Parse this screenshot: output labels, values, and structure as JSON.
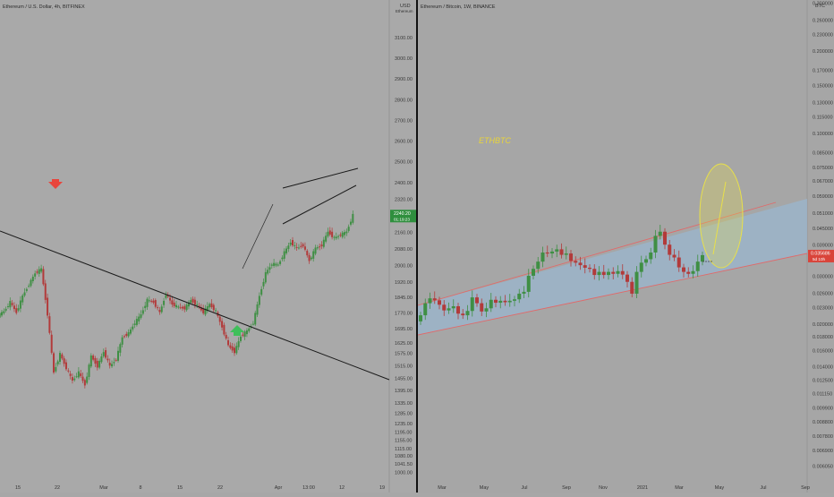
{
  "colors": {
    "background": "#a9a9a9",
    "up_candle": "#3f8f44",
    "down_candle": "#b23a3a",
    "channel_fill": "#9bb4c9",
    "channel_line": "#e06a6a",
    "ellipse": "#e8e04a",
    "price_tag_green": "#2f8f3e",
    "price_tag_red": "#d9443a",
    "arrow_down": "#e8453c",
    "arrow_up": "#3fbf5a"
  },
  "left_panel": {
    "title": "Ethereum / U.S. Dollar, 4h, BITFINEX",
    "axis_unit": "USD",
    "axis_unit_sub": "Ethereum",
    "price_tag": {
      "value": "2240.20",
      "time": "01:19:23"
    },
    "annotations": [
      {
        "kind": "arrow-down",
        "color": "red"
      },
      {
        "kind": "arrow-up",
        "color": "green"
      }
    ]
  },
  "right_panel": {
    "title": "Ethereum / Bitcoin, 1W, BINANCE",
    "axis_unit": "BTC",
    "label": "ETHBTC",
    "price_tag": {
      "value": "0.035686",
      "time": "5d 10h"
    }
  },
  "chart_data": [
    {
      "type": "line",
      "title": "Ethereum / U.S. Dollar, 4h, BITFINEX",
      "y_scale": "linear",
      "ylim": [
        1000,
        3180
      ],
      "x_tick_labels": [
        "15",
        "22",
        "Mar",
        "8",
        "15",
        "22",
        "Apr",
        "13:00",
        "12",
        "19"
      ],
      "y_tick_labels": [
        "3100.00",
        "3000.00",
        "2900.00",
        "2800.00",
        "2700.00",
        "2600.00",
        "2500.00",
        "2400.00",
        "2320.00",
        "2240.20",
        "2160.00",
        "2080.00",
        "2000.00",
        "1920.00",
        "1845.00",
        "1770.00",
        "1695.00",
        "1625.00",
        "1575.00",
        "1515.00",
        "1455.00",
        "1395.00",
        "1335.00",
        "1285.00",
        "1235.00",
        "1195.00",
        "1155.00",
        "1115.00",
        "1080.00",
        "1041.50",
        "1000.00"
      ],
      "series": [
        {
          "x": [
            "15",
            "16",
            "17",
            "18",
            "19",
            "20",
            "21",
            "22",
            "23",
            "24",
            "25",
            "26",
            "27",
            "28",
            "Mar",
            "2",
            "3",
            "4",
            "5",
            "6",
            "7",
            "8",
            "9",
            "10",
            "11",
            "12",
            "13",
            "14",
            "15",
            "16",
            "17",
            "18",
            "19",
            "20",
            "21",
            "22",
            "23",
            "24",
            "25",
            "26",
            "27",
            "28",
            "29",
            "30",
            "31",
            "Apr",
            "2",
            "3",
            "4",
            "5",
            "6",
            "7",
            "8",
            "9",
            "10",
            "11",
            "12"
          ],
          "values": [
            1775,
            1820,
            1770,
            1850,
            1905,
            1960,
            1980,
            1760,
            1480,
            1570,
            1500,
            1440,
            1480,
            1420,
            1560,
            1510,
            1580,
            1510,
            1545,
            1650,
            1670,
            1720,
            1760,
            1830,
            1820,
            1770,
            1860,
            1810,
            1795,
            1790,
            1830,
            1805,
            1770,
            1810,
            1775,
            1700,
            1610,
            1580,
            1655,
            1680,
            1720,
            1850,
            1960,
            2005,
            2000,
            2060,
            2110,
            2080,
            2095,
            2020,
            2080,
            2095,
            2160,
            2130,
            2145,
            2160,
            2240
          ]
        }
      ],
      "annotations": [
        "descending trendline",
        "rising wedge",
        "short upward line"
      ]
    },
    {
      "type": "line",
      "title": "Ethereum / Bitcoin, 1W, BINANCE",
      "y_scale": "log",
      "ylim": [
        0.006,
        0.32
      ],
      "x_tick_labels": [
        "Mar",
        "May",
        "Jul",
        "Sep",
        "Nov",
        "2021",
        "Mar",
        "May",
        "Jul",
        "Sep"
      ],
      "y_tick_labels": [
        "0.300000",
        "0.260000",
        "0.230000",
        "0.200000",
        "0.170000",
        "0.150000",
        "0.130000",
        "0.115000",
        "0.100000",
        "0.085000",
        "0.075000",
        "0.067000",
        "0.059000",
        "0.051000",
        "0.045000",
        "0.039000",
        "0.035686",
        "0.030000",
        "0.026000",
        "0.023000",
        "0.020000",
        "0.018000",
        "0.016000",
        "0.014000",
        "0.012500",
        "0.011150",
        "0.009900",
        "0.008800",
        "0.007800",
        "0.006900",
        "0.006050"
      ],
      "series": [
        {
          "x": [
            "2020-02-10",
            "2020-02-17",
            "2020-02-24",
            "2020-03-02",
            "2020-03-09",
            "2020-03-16",
            "2020-03-23",
            "2020-03-30",
            "2020-04-06",
            "2020-04-13",
            "2020-04-20",
            "2020-04-27",
            "2020-05-04",
            "2020-05-11",
            "2020-05-18",
            "2020-05-25",
            "2020-06-01",
            "2020-06-08",
            "2020-06-15",
            "2020-06-22",
            "2020-06-29",
            "2020-07-06",
            "2020-07-13",
            "2020-07-20",
            "2020-07-27",
            "2020-08-03",
            "2020-08-10",
            "2020-08-17",
            "2020-08-24",
            "2020-08-31",
            "2020-09-07",
            "2020-09-14",
            "2020-09-21",
            "2020-09-28",
            "2020-10-05",
            "2020-10-12",
            "2020-10-19",
            "2020-10-26",
            "2020-11-02",
            "2020-11-09",
            "2020-11-16",
            "2020-11-23",
            "2020-11-30",
            "2020-12-07",
            "2020-12-14",
            "2020-12-21",
            "2020-12-28",
            "2021-01-04",
            "2021-01-11",
            "2021-01-18",
            "2021-01-25",
            "2021-02-01",
            "2021-02-08",
            "2021-02-15",
            "2021-02-22",
            "2021-03-01",
            "2021-03-08",
            "2021-03-15",
            "2021-03-22",
            "2021-03-29",
            "2021-04-05"
          ],
          "values": [
            0.0215,
            0.0238,
            0.0248,
            0.0244,
            0.0235,
            0.0224,
            0.0228,
            0.0232,
            0.0218,
            0.0215,
            0.0223,
            0.025,
            0.0238,
            0.0222,
            0.0228,
            0.0245,
            0.0239,
            0.0243,
            0.024,
            0.0243,
            0.0246,
            0.0258,
            0.0262,
            0.03,
            0.0318,
            0.0338,
            0.0365,
            0.0362,
            0.0368,
            0.0375,
            0.0358,
            0.0362,
            0.034,
            0.0335,
            0.0328,
            0.0321,
            0.0318,
            0.0302,
            0.031,
            0.0302,
            0.031,
            0.0305,
            0.0312,
            0.0303,
            0.0285,
            0.0258,
            0.031,
            0.0335,
            0.0345,
            0.0365,
            0.042,
            0.0435,
            0.039,
            0.0358,
            0.035,
            0.0322,
            0.031,
            0.0305,
            0.0312,
            0.0338,
            0.0357
          ]
        }
      ],
      "annotations": [
        "ascending channel",
        "projection ellipse"
      ]
    }
  ]
}
